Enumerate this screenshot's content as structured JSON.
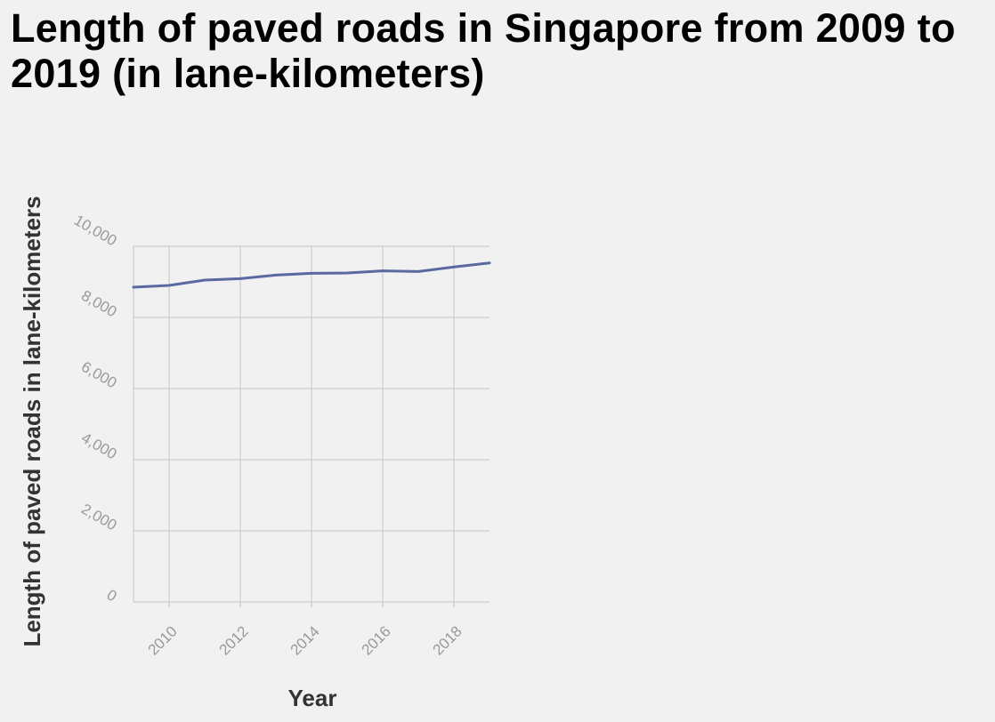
{
  "chart_data": {
    "type": "line",
    "title": "Length of paved roads in Singapore from 2009 to 2019 (in lane-kilometers)",
    "xlabel": "Year",
    "ylabel": "Length of paved roads in lane-kilometers",
    "xlim": [
      2009,
      2019
    ],
    "ylim": [
      0,
      10000
    ],
    "x_ticks": [
      2010,
      2012,
      2014,
      2016,
      2018
    ],
    "x_tick_labels": [
      "2010",
      "2012",
      "2014",
      "2016",
      "2018"
    ],
    "y_ticks": [
      0,
      2000,
      4000,
      6000,
      8000,
      10000
    ],
    "y_tick_labels": [
      "0",
      "2,000",
      "4,000",
      "6,000",
      "8,000",
      "10,000"
    ],
    "grid": true,
    "series": [
      {
        "color": "#5a6aa0",
        "x": [
          2009,
          2010,
          2011,
          2012,
          2013,
          2014,
          2015,
          2016,
          2017,
          2018,
          2019
        ],
        "y": [
          8850,
          8900,
          9050,
          9090,
          9190,
          9240,
          9250,
          9310,
          9290,
          9420,
          9530
        ]
      }
    ]
  }
}
